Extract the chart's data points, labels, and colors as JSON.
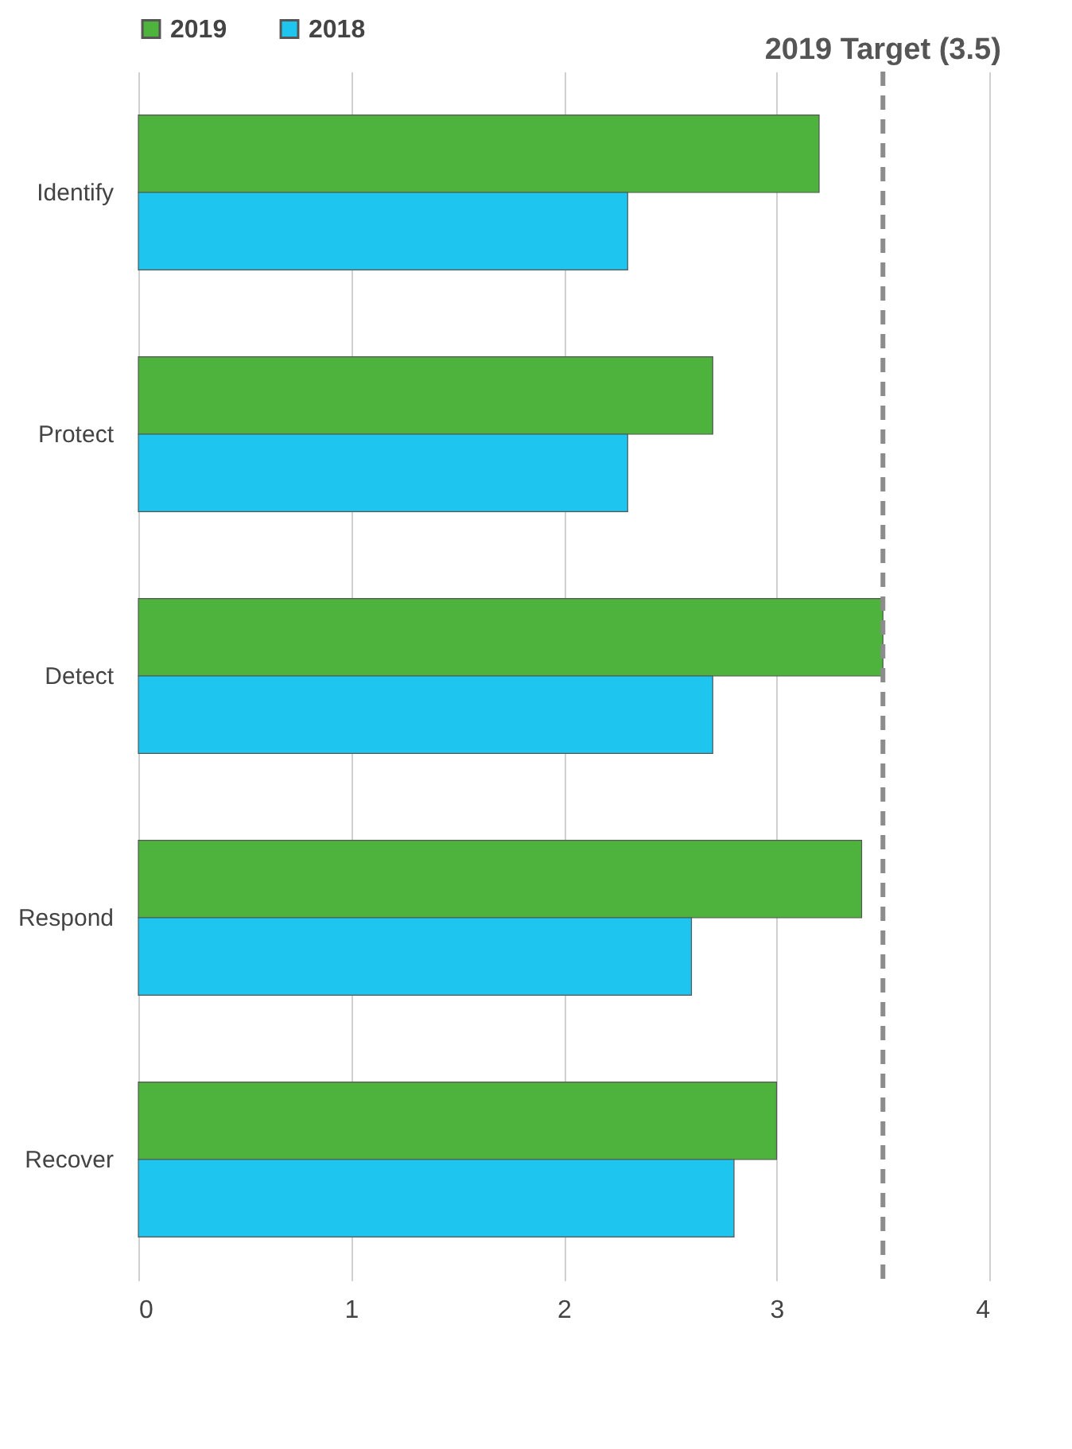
{
  "chart_data": {
    "type": "bar",
    "orientation": "horizontal",
    "categories": [
      "Identify",
      "Protect",
      "Detect",
      "Respond",
      "Recover"
    ],
    "series": [
      {
        "name": "2019",
        "color": "#4db33d",
        "values": [
          3.2,
          2.7,
          3.5,
          3.4,
          3.0
        ]
      },
      {
        "name": "2018",
        "color": "#1ec6ef",
        "values": [
          2.3,
          2.3,
          2.7,
          2.6,
          2.8
        ]
      }
    ],
    "xlim": [
      0,
      4
    ],
    "xticks": [
      0,
      1,
      2,
      3,
      4
    ],
    "grid": "x",
    "legend": "top left",
    "ref_lines": [
      {
        "axis": "x",
        "value": 3.5,
        "label": "2019 Target (3.5)",
        "color": "#8c8c8c",
        "line_style": "dashed"
      }
    ]
  }
}
